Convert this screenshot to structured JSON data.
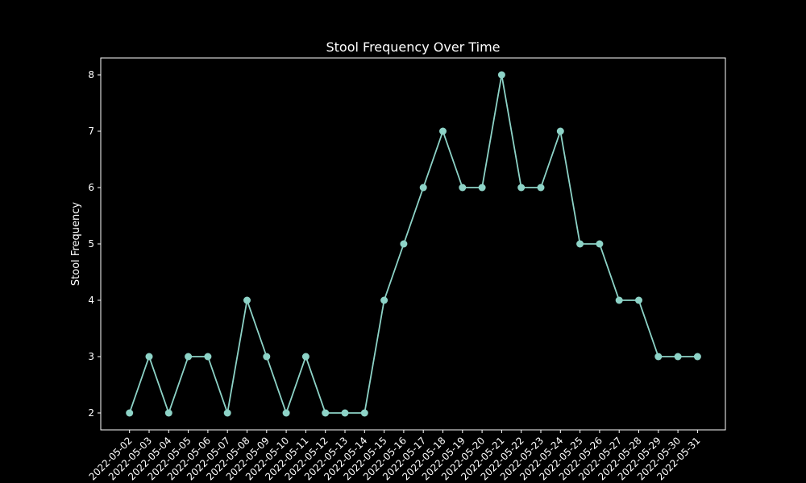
{
  "chart_data": {
    "type": "line",
    "title": "Stool Frequency Over Time",
    "xlabel": "",
    "ylabel": "Stool Frequency",
    "categories": [
      "2022-05-02",
      "2022-05-03",
      "2022-05-04",
      "2022-05-05",
      "2022-05-06",
      "2022-05-07",
      "2022-05-08",
      "2022-05-09",
      "2022-05-10",
      "2022-05-11",
      "2022-05-12",
      "2022-05-13",
      "2022-05-14",
      "2022-05-15",
      "2022-05-16",
      "2022-05-17",
      "2022-05-18",
      "2022-05-19",
      "2022-05-20",
      "2022-05-21",
      "2022-05-22",
      "2022-05-23",
      "2022-05-24",
      "2022-05-25",
      "2022-05-26",
      "2022-05-27",
      "2022-05-28",
      "2022-05-29",
      "2022-05-30",
      "2022-05-31"
    ],
    "series": [
      {
        "values": [
          2,
          3,
          2,
          3,
          3,
          2,
          4,
          3,
          2,
          3,
          2,
          2,
          2,
          4,
          5,
          6,
          7,
          6,
          6,
          8,
          6,
          6,
          7,
          5,
          5,
          4,
          4,
          3,
          3,
          3
        ]
      }
    ],
    "yticks": [
      2,
      3,
      4,
      5,
      6,
      7,
      8
    ],
    "ylim": [
      1.7,
      8.3
    ],
    "grid": false,
    "legend": "none",
    "colors": {
      "background": "#000000",
      "axes": "#ffffff",
      "line": "#8dd3c7",
      "text": "#ffffff"
    }
  }
}
